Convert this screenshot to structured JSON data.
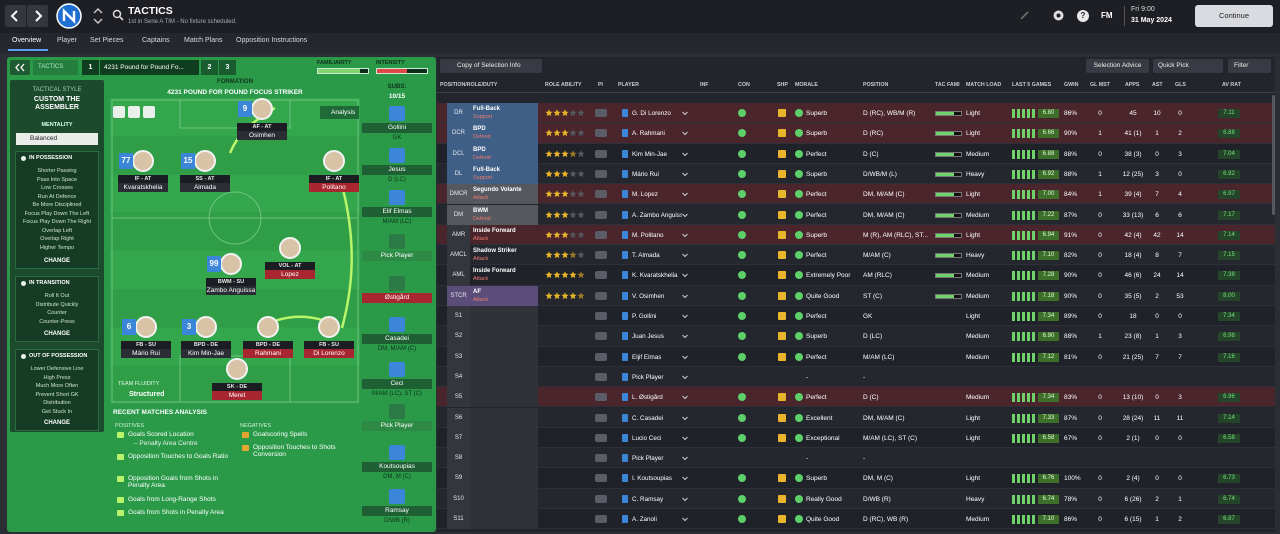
{
  "header": {
    "title": "TACTICS",
    "subtitle": "1st in Serie A TIM - No fixture scheduled.",
    "help": "?",
    "logo": "FM",
    "time": "Fri 9:00",
    "date": "31 May 2024",
    "continue": "Continue"
  },
  "tabs": [
    "Overview",
    "Player",
    "Set Pieces",
    "Captains",
    "Match Plans",
    "Opposition Instructions"
  ],
  "tactic_bar": {
    "label": "TACTICS",
    "slots": [
      "1",
      "2",
      "3"
    ],
    "name": "4231 Pound for Pound Fo...",
    "familiarity": "FAMILIARITY",
    "intensity": "INTENSITY"
  },
  "style": {
    "heading": "TACTICAL STYLE",
    "name": "CUSTOM THE ASSEMBLER",
    "mentality_label": "MENTALITY",
    "mentality": "Balanced",
    "phases": [
      {
        "title": "IN POSSESSION",
        "items": [
          "Shorter Passing",
          "Pass Into Space",
          "Low Crosses",
          "Run At Defence",
          "Be More Disciplined",
          "Focus Play Down The Left",
          "Focus Play Down The Right",
          "Overlap Left",
          "Overlap Right",
          "Higher Tempo"
        ],
        "action": "CHANGE"
      },
      {
        "title": "IN TRANSITION",
        "items": [
          "Roll It Out",
          "Distribute Quickly",
          "Counter",
          "Counter-Press"
        ],
        "action": "CHANGE"
      },
      {
        "title": "OUT OF POSSESSION",
        "items": [
          "Lower Defensive Line",
          "High Press",
          "Much More Often",
          "Prevent Short GK",
          "Distribution",
          "Get Stuck In"
        ],
        "action": "CHANGE"
      }
    ]
  },
  "formation": {
    "label": "FORMATION",
    "name": "4231 POUND FOR POUND FOCUS STRIKER",
    "subs_label": "SUBS:",
    "subs_count": "10/15",
    "analysis": "Analysis",
    "fluidity_label": "TEAM FLUIDITY",
    "fluidity": "Structured",
    "players": [
      {
        "name": "Osimhen",
        "role": "AF - AT",
        "shirt": 9,
        "color": "#2a2d33"
      },
      {
        "name": "Kvaratskhelia",
        "role": "IF - AT",
        "shirt": 77,
        "color": "#2a2d33"
      },
      {
        "name": "Almada",
        "role": "SS - AT",
        "shirt": 15,
        "color": "#2a2d33"
      },
      {
        "name": "Politano",
        "role": "IF - AT",
        "color": "#a8262f"
      },
      {
        "name": "Lopez",
        "role": "VOL - AT",
        "color": "#a8262f"
      },
      {
        "name": "Zambo Anguissa",
        "role": "BWM - SU",
        "shirt": 99,
        "color": "#2a2d33"
      },
      {
        "name": "Mário Rui",
        "role": "FB - SU",
        "shirt": 6,
        "color": "#2a2d33"
      },
      {
        "name": "Kim Min-Jae",
        "role": "BPD - DE",
        "shirt": 3,
        "color": "#2a2d33"
      },
      {
        "name": "Rahmani",
        "role": "BPD - DE",
        "color": "#a8262f"
      },
      {
        "name": "Di Lorenzo",
        "role": "FB - SU",
        "color": "#a8262f"
      },
      {
        "name": "Meret",
        "role": "SK - DE",
        "color": "#a8262f"
      }
    ],
    "subs": [
      {
        "name": "Gollini",
        "position": "GK",
        "color": "#1f5f34"
      },
      {
        "name": "Jesus",
        "position": "D (LC)",
        "color": "#1f5f34"
      },
      {
        "name": "Elif Elmas",
        "position": "M/AM (LC)",
        "color": "#1f5f34"
      },
      {
        "name": "Pick Player",
        "color": "#2d8a45"
      },
      {
        "name": "Østigård",
        "color": "#a8262f"
      },
      {
        "name": "Casadei",
        "position": "DM, M/AM (C)",
        "color": "#1f5f34"
      },
      {
        "name": "Ceci",
        "position": "M/AM (LC), ST (C)",
        "color": "#1f5f34"
      },
      {
        "name": "Pick Player",
        "color": "#2d8a45"
      },
      {
        "name": "Koutsoupias",
        "position": "DM, M (C)",
        "color": "#1f5f34"
      },
      {
        "name": "Ramsay",
        "position": "D/WB (R)",
        "color": "#1f5f34"
      }
    ]
  },
  "analysis": {
    "title": "RECENT MATCHES ANALYSIS",
    "positives_label": "POSITIVES",
    "negatives_label": "NEGATIVES",
    "positives": [
      {
        "text": "Goals Scored Location",
        "detail": "– Penalty Area Centre"
      },
      {
        "text": "Opposition Touches to Goals Ratio"
      },
      {
        "text": "Opposition Goals from Shots in Penalty Area"
      },
      {
        "text": "Goals from Long-Range Shots"
      },
      {
        "text": "Goals from Shots in Penalty Area"
      }
    ],
    "negatives": [
      {
        "text": "Goalscoring Spells"
      },
      {
        "text": "Opposition Touches to Shots Conversion"
      }
    ]
  },
  "table": {
    "copy_button": "Copy of Selection Info",
    "selection_advice": "Selection Advice",
    "quick_pick": "Quick Pick",
    "filter": "Filter",
    "columns": [
      "POSITION/ROLE/DUTY",
      "ROLE ABILITY",
      "PI",
      "PLAYER",
      "INF",
      "CON",
      "SHP",
      "MORALE",
      "POSITION",
      "TAC FAMI",
      "MATCH LOAD",
      "LAST 5 GAMES",
      "GWIN",
      "GL MST",
      "APPS",
      "AST",
      "GLS",
      "AV RAT"
    ],
    "rows": [
      {
        "pos": "DR",
        "role": "Full-Back",
        "duty": "Support",
        "ability": 3,
        "player": "G. Di Lorenzo",
        "morale": "Superb",
        "position": "D (RC), WB/M (R)",
        "load": "Light",
        "form": "6.80",
        "gwin": "86%",
        "glmst": 0,
        "apps": 45,
        "ast": 10,
        "gls": 0,
        "rating": "7.11",
        "role_color": "#3f5f86",
        "row_color": "#4a262c"
      },
      {
        "pos": "DCR",
        "role": "BPD",
        "duty": "Defend",
        "ability": 3,
        "player": "A. Rahmani",
        "morale": "Superb",
        "position": "D (RC)",
        "load": "Light",
        "form": "6.66",
        "gwin": "90%",
        "glmst": 1,
        "apps": "41 (1)",
        "ast": 1,
        "gls": 2,
        "rating": "6.88",
        "role_color": "#3f5f86",
        "row_color": "#4a262c"
      },
      {
        "pos": "DCL",
        "role": "BPD",
        "duty": "Defend",
        "ability": 3.5,
        "player": "Kim Min-Jae",
        "morale": "Perfect",
        "position": "D (C)",
        "load": "Medium",
        "form": "6.88",
        "gwin": "88%",
        "glmst": 0,
        "apps": "38 (3)",
        "ast": 0,
        "gls": 3,
        "rating": "7.04",
        "role_color": "#3f5f86"
      },
      {
        "pos": "DL",
        "role": "Full-Back",
        "duty": "Support",
        "ability": 3,
        "player": "Mário Rui",
        "morale": "Superb",
        "position": "D/WB/M (L)",
        "load": "Heavy",
        "form": "6.92",
        "gwin": "88%",
        "glmst": 1,
        "apps": "12 (25)",
        "ast": 3,
        "gls": 0,
        "rating": "6.92",
        "role_color": "#3f5f86"
      },
      {
        "pos": "DMCR",
        "role": "Segundo Volante",
        "duty": "Attack",
        "ability": 3,
        "player": "M. Lopez",
        "morale": "Perfect",
        "position": "DM, M/AM (C)",
        "load": "Light",
        "form": "7.00",
        "gwin": "84%",
        "glmst": 1,
        "apps": "39 (4)",
        "ast": 7,
        "gls": 4,
        "rating": "6.97",
        "role_color": "#55585f",
        "row_color": "#4a262c"
      },
      {
        "pos": "DM",
        "role": "BWM",
        "duty": "Defend",
        "ability": 3,
        "player": "A. Zambo Anguissa",
        "morale": "Perfect",
        "position": "DM, M/AM (C)",
        "load": "Medium",
        "form": "7.22",
        "gwin": "87%",
        "glmst": 0,
        "apps": "33 (13)",
        "ast": 6,
        "gls": 6,
        "rating": "7.17",
        "role_color": "#55585f"
      },
      {
        "pos": "AMR",
        "role": "Inside Forward",
        "duty": "Attack",
        "ability": 3,
        "player": "M. Politano",
        "morale": "Superb",
        "position": "M (R), AM (RLC), ST...",
        "load": "Light",
        "form": "6.94",
        "gwin": "91%",
        "glmst": 0,
        "apps": "42 (4)",
        "ast": 42,
        "gls": 14,
        "rating": "7.14",
        "row_color": "#4a262c"
      },
      {
        "pos": "AMCL",
        "role": "Shadow Striker",
        "duty": "Attack",
        "ability": 3.5,
        "player": "T. Almada",
        "morale": "Perfect",
        "position": "M/AM (C)",
        "load": "Heavy",
        "form": "7.10",
        "gwin": "82%",
        "glmst": 0,
        "apps": "18 (4)",
        "ast": 8,
        "gls": 7,
        "rating": "7.15"
      },
      {
        "pos": "AML",
        "role": "Inside Forward",
        "duty": "Attack",
        "ability": 4.5,
        "player": "K. Kvaratskhelia",
        "morale": "Extremely Poor",
        "position": "AM (RLC)",
        "load": "Medium",
        "form": "7.28",
        "gwin": "90%",
        "glmst": 0,
        "apps": "46 (6)",
        "ast": 24,
        "gls": 14,
        "rating": "7.38"
      },
      {
        "pos": "STCR",
        "role": "AF",
        "duty": "Attack",
        "ability": 4.5,
        "player": "V. Osimhen",
        "morale": "Quite Good",
        "position": "ST (C)",
        "load": "Medium",
        "form": "7.18",
        "gwin": "90%",
        "glmst": 0,
        "apps": "35 (5)",
        "ast": 2,
        "gls": 53,
        "rating": "8.00",
        "role_color": "#5b4d7a"
      },
      {
        "pos": "S1",
        "player": "P. Gollini",
        "morale": "Perfect",
        "position": "GK",
        "load": "Light",
        "form": "7.34",
        "gwin": "89%",
        "glmst": 0,
        "apps": 18,
        "ast": 0,
        "gls": 0,
        "rating": "7.34"
      },
      {
        "pos": "S2",
        "player": "Juan Jesus",
        "morale": "Superb",
        "position": "D (LC)",
        "load": "Medium",
        "form": "6.90",
        "gwin": "88%",
        "glmst": 1,
        "apps": "23 (8)",
        "ast": 1,
        "gls": 3,
        "rating": "6.98"
      },
      {
        "pos": "S3",
        "player": "Eljif Elmas",
        "morale": "Perfect",
        "position": "M/AM (LC)",
        "load": "Medium",
        "form": "7.12",
        "gwin": "81%",
        "glmst": 0,
        "apps": "21 (25)",
        "ast": 7,
        "gls": 7,
        "rating": "7.16"
      },
      {
        "pos": "S4",
        "player": "Pick Player",
        "morale": "-",
        "position": "-"
      },
      {
        "pos": "S5",
        "player": "L. Østigård",
        "morale": "Perfect",
        "position": "D (C)",
        "load": "Medium",
        "form": "7.34",
        "gwin": "83%",
        "glmst": 0,
        "apps": "13 (10)",
        "ast": 0,
        "gls": 3,
        "rating": "6.96",
        "row_color": "#4a262c"
      },
      {
        "pos": "S6",
        "player": "C. Casadei",
        "morale": "Excellent",
        "position": "DM, M/AM (C)",
        "load": "Light",
        "form": "7.33",
        "gwin": "87%",
        "glmst": 0,
        "apps": "28 (24)",
        "ast": 11,
        "gls": 11,
        "rating": "7.14"
      },
      {
        "pos": "S7",
        "player": "Lucio Ceci",
        "morale": "Exceptional",
        "position": "M/AM (LC), ST (C)",
        "load": "Light",
        "form": "6.58",
        "gwin": "67%",
        "glmst": 0,
        "apps": "2 (1)",
        "ast": 0,
        "gls": 0,
        "rating": "6.58"
      },
      {
        "pos": "S8",
        "player": "Pick Player",
        "morale": "-",
        "position": "-"
      },
      {
        "pos": "S9",
        "player": "I. Koutsoupias",
        "morale": "Superb",
        "position": "DM, M (C)",
        "load": "Light",
        "form": "6.76",
        "gwin": "100%",
        "glmst": 0,
        "apps": "2 (4)",
        "ast": 0,
        "gls": 0,
        "rating": "6.73"
      },
      {
        "pos": "S10",
        "player": "C. Ramsay",
        "morale": "Really Good",
        "position": "D/WB (R)",
        "load": "Heavy",
        "form": "6.74",
        "gwin": "78%",
        "glmst": 0,
        "apps": "6 (26)",
        "ast": 2,
        "gls": 1,
        "rating": "6.74"
      },
      {
        "pos": "S11",
        "player": "A. Zanoli",
        "morale": "Quite Good",
        "position": "D (RC), WB (R)",
        "load": "Medium",
        "form": "7.10",
        "gwin": "86%",
        "glmst": 0,
        "apps": "6 (15)",
        "ast": 1,
        "gls": 2,
        "rating": "6.87"
      }
    ]
  }
}
